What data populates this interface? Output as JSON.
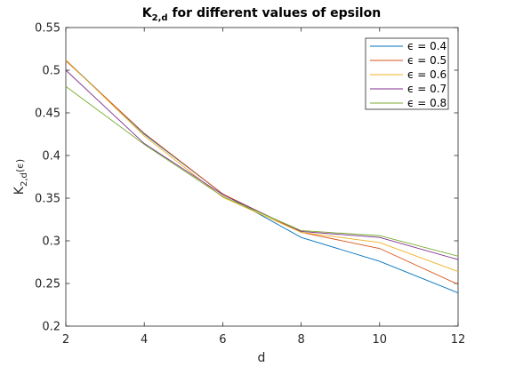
{
  "chart_data": {
    "type": "line",
    "title": {
      "base": "K",
      "subscript": "2,d",
      "suffix": " for different values of epsilon"
    },
    "xlabel": "d",
    "ylabel": {
      "base": "K",
      "subscript": "2,d",
      "suffix": "(ϵ)"
    },
    "xlim": [
      2,
      12
    ],
    "ylim": [
      0.2,
      0.55
    ],
    "xticks": [
      "2",
      "4",
      "6",
      "8",
      "10",
      "12"
    ],
    "yticks": [
      "0.2",
      "0.25",
      "0.3",
      "0.35",
      "0.4",
      "0.45",
      "0.5",
      "0.55"
    ],
    "x": [
      2,
      4,
      6,
      8,
      10,
      12
    ],
    "legend_position": "top-right",
    "grid": false,
    "series": [
      {
        "name": "ϵ = 0.4",
        "color": "#0072BD",
        "values": [
          0.512,
          0.425,
          0.355,
          0.304,
          0.276,
          0.239
        ]
      },
      {
        "name": "ϵ = 0.5",
        "color": "#D95319",
        "values": [
          0.511,
          0.426,
          0.355,
          0.31,
          0.291,
          0.249
        ]
      },
      {
        "name": "ϵ = 0.6",
        "color": "#EDB120",
        "values": [
          0.512,
          0.423,
          0.351,
          0.31,
          0.298,
          0.264
        ]
      },
      {
        "name": "ϵ = 0.7",
        "color": "#7E2F8E",
        "values": [
          0.5,
          0.414,
          0.354,
          0.311,
          0.304,
          0.278
        ]
      },
      {
        "name": "ϵ = 0.8",
        "color": "#77AC30",
        "values": [
          0.481,
          0.413,
          0.352,
          0.312,
          0.306,
          0.282
        ]
      }
    ]
  }
}
